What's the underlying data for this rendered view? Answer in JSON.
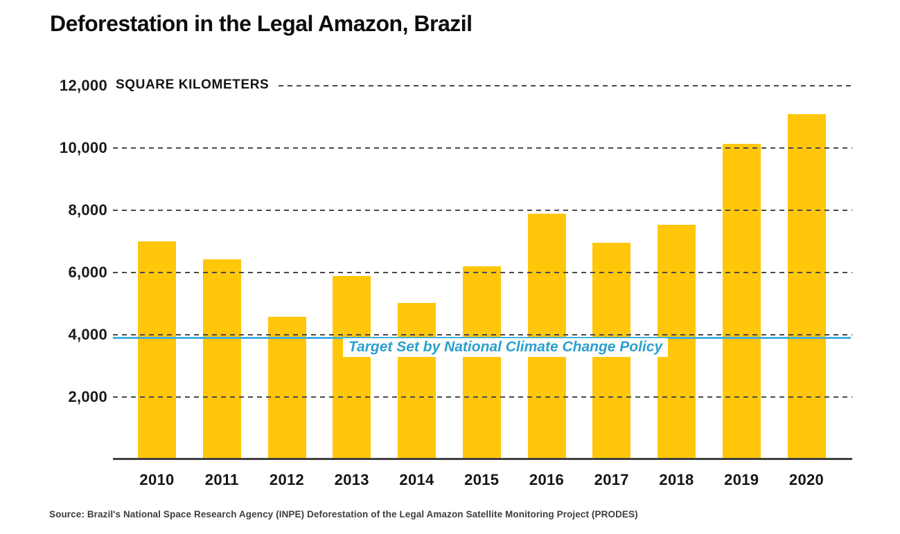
{
  "title": "Deforestation in the Legal Amazon, Brazil",
  "unit_label": "SQUARE KILOMETERS",
  "source_note": "Source: Brazil's National Space Research Agency (INPE) Deforestation of the Legal Amazon Satellite Monitoring Project (PRODES)",
  "colors": {
    "bar": "#FFC60A",
    "gridline": "#4a4a4a",
    "axis": "#3f3f3f",
    "target_line": "#45AEDD",
    "target_label_text": "#2B9FCE",
    "text": "#141414"
  },
  "target": {
    "label": "Target Set by National Climate Change Policy",
    "value": 3925
  },
  "chart_data": {
    "type": "bar",
    "title": "Deforestation in the Legal Amazon, Brazil",
    "xlabel": "",
    "ylabel": "SQUARE KILOMETERS",
    "categories": [
      "2010",
      "2011",
      "2012",
      "2013",
      "2014",
      "2015",
      "2016",
      "2017",
      "2018",
      "2019",
      "2020"
    ],
    "values": [
      7000,
      6418,
      4571,
      5891,
      5012,
      6207,
      7893,
      6947,
      7536,
      10129,
      11088
    ],
    "ylim": [
      0,
      12000
    ],
    "yticks": [
      2000,
      4000,
      6000,
      8000,
      10000,
      12000
    ],
    "ytick_labels": [
      "2,000",
      "4,000",
      "6,000",
      "8,000",
      "10,000",
      "12,000"
    ],
    "grid": "horizontal-dashed, drawn over bars",
    "legend": "none",
    "annotation": {
      "type": "horizontal-reference-line",
      "label": "Target Set by National Climate Change Policy",
      "value": 3925
    }
  }
}
